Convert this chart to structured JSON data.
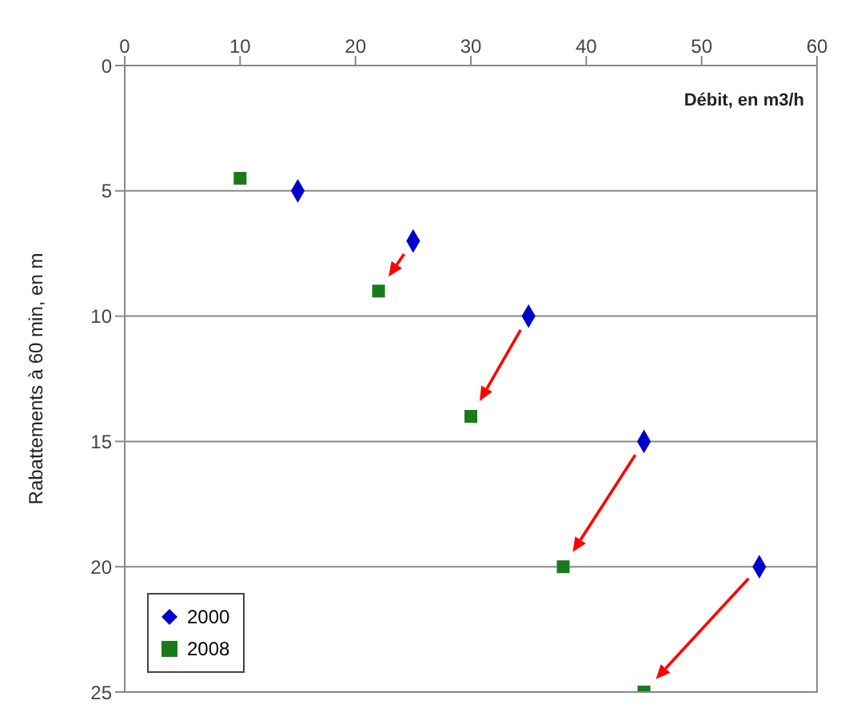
{
  "chart_data": {
    "type": "scatter",
    "xlabel": "Débit, en m3/h",
    "ylabel": "Rabattements à 60 min, en m",
    "xlim": [
      0,
      60
    ],
    "xticks": [
      0,
      10,
      20,
      30,
      40,
      50,
      60
    ],
    "ylim": [
      25,
      0
    ],
    "yticks": [
      0,
      5,
      10,
      15,
      20,
      25
    ],
    "grid": "y",
    "legend": "bottom left",
    "series": [
      {
        "name": "2000",
        "color": "#0000cc",
        "marker": "diamond",
        "x": [
          15,
          25,
          35,
          45,
          55
        ],
        "values": [
          5,
          7,
          10,
          15,
          20
        ]
      },
      {
        "name": "2008",
        "color": "#1a7a1a",
        "marker": "square",
        "x": [
          10,
          22,
          30,
          38,
          45
        ],
        "values": [
          4.5,
          9,
          14,
          20,
          25
        ]
      }
    ]
  }
}
